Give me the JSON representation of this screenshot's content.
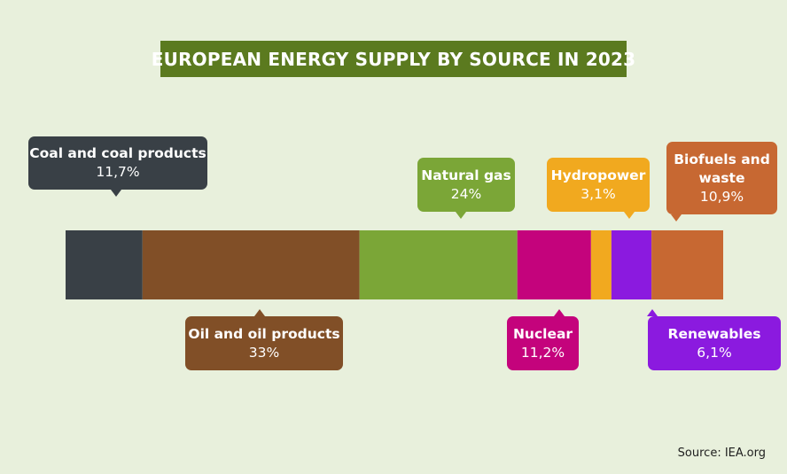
{
  "title": "EUROPEAN ENERGY SUPPLY BY SOURCE IN 2023",
  "source": "Source: IEA.org",
  "chart_data": {
    "type": "bar",
    "stacked": true,
    "orientation": "horizontal",
    "unit": "%",
    "series": [
      {
        "name": "Coal and coal products",
        "label": "11,7%",
        "value": 11.7,
        "color": "#394046"
      },
      {
        "name": "Oil and oil products",
        "label": "33%",
        "value": 33,
        "color": "#814f27"
      },
      {
        "name": "Natural gas",
        "label": "24%",
        "value": 24,
        "color": "#7ba637"
      },
      {
        "name": "Nuclear",
        "label": "11,2%",
        "value": 11.2,
        "color": "#c4037c"
      },
      {
        "name": "Hydropower",
        "label": "3,1%",
        "value": 3.1,
        "color": "#f1a91f"
      },
      {
        "name": "Renewables",
        "label": "6,1%",
        "value": 6.1,
        "color": "#8b1adf"
      },
      {
        "name": "Biofuels and waste",
        "label": "10,9%",
        "value": 10.9,
        "color": "#c76832"
      }
    ]
  }
}
